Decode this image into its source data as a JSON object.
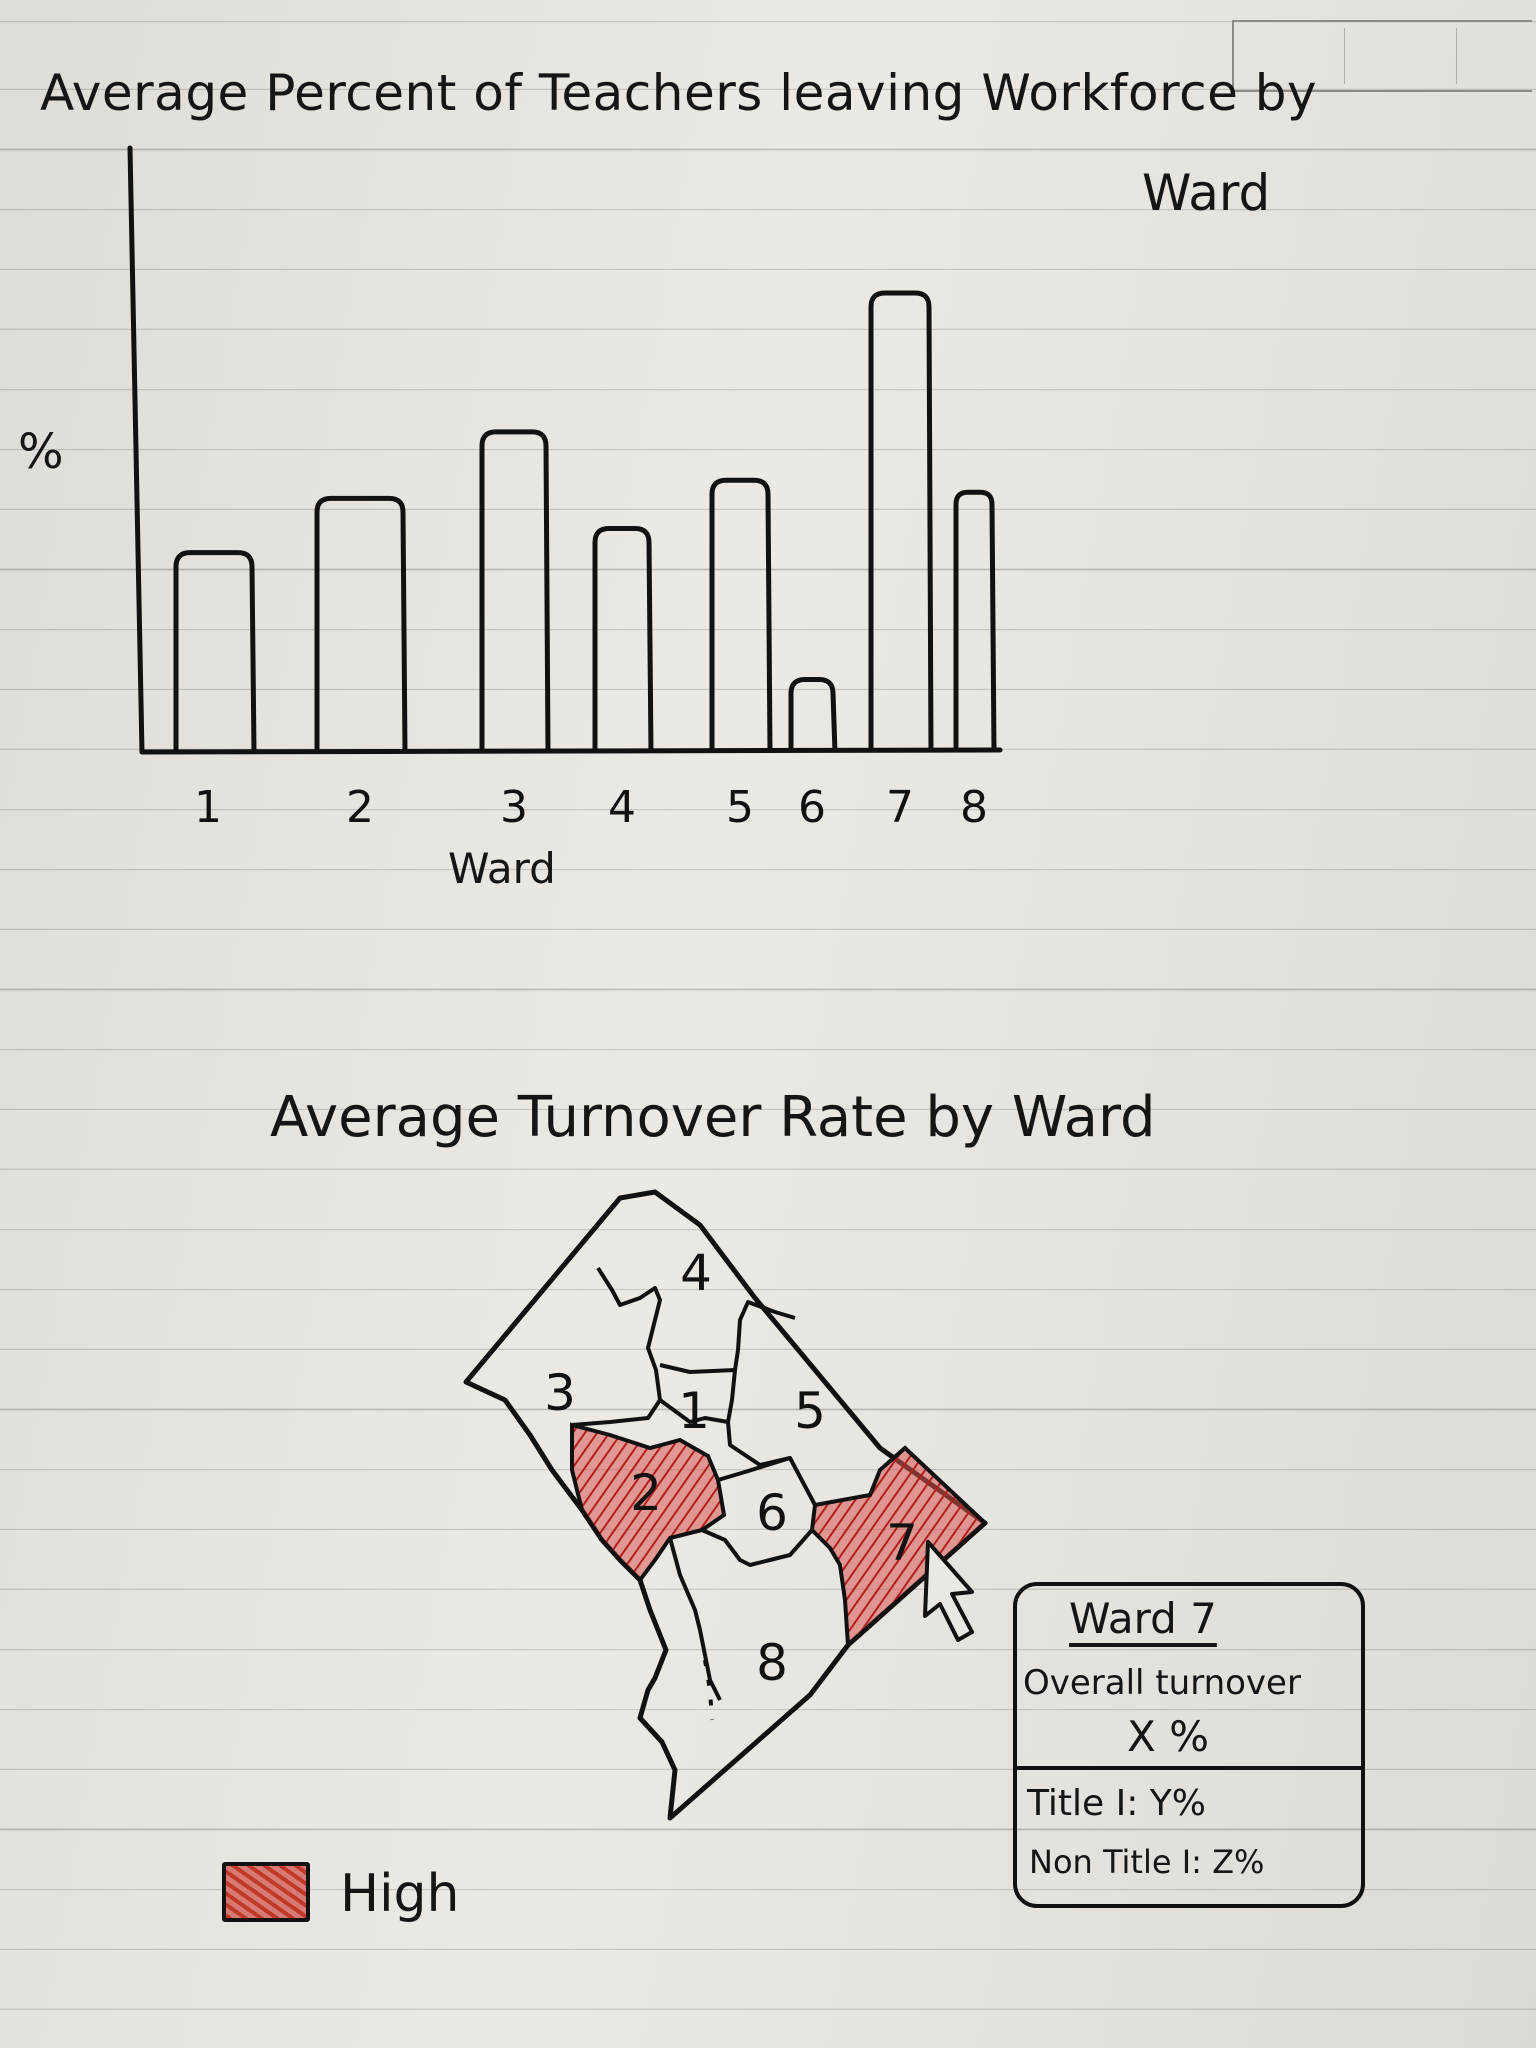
{
  "bar_chart": {
    "title": "Average Percent of Teachers leaving Workforce by Ward",
    "ylabel": "%",
    "xlabel": "Ward",
    "chart_data": {
      "type": "bar",
      "title": "Average Percent of Teachers leaving Workforce by Ward",
      "xlabel": "Ward",
      "ylabel": "%",
      "categories": [
        "1",
        "2",
        "3",
        "4",
        "5",
        "6",
        "7",
        "8"
      ],
      "values": [
        0.33,
        0.42,
        0.53,
        0.37,
        0.45,
        0.12,
        0.76,
        0.43
      ],
      "ylim": [
        0,
        1
      ],
      "grid": false,
      "value_units": "relative height (no axis ticks shown)"
    }
  },
  "map": {
    "title": "Average Turnover Rate by Ward",
    "wards": [
      "1",
      "2",
      "3",
      "4",
      "5",
      "6",
      "7",
      "8"
    ],
    "highlighted_wards": [
      "2",
      "7"
    ],
    "highlight_color": "#c0392b",
    "pointer_icon": "cursor-arrow-icon"
  },
  "tooltip": {
    "header": "Ward 7",
    "overall_label": "Overall turnover",
    "overall_value": "X %",
    "title1": "Title I: Y%",
    "nontitle1": "Non Title I: Z%"
  },
  "legend": {
    "label": "High",
    "swatch_color": "#c0392b"
  }
}
